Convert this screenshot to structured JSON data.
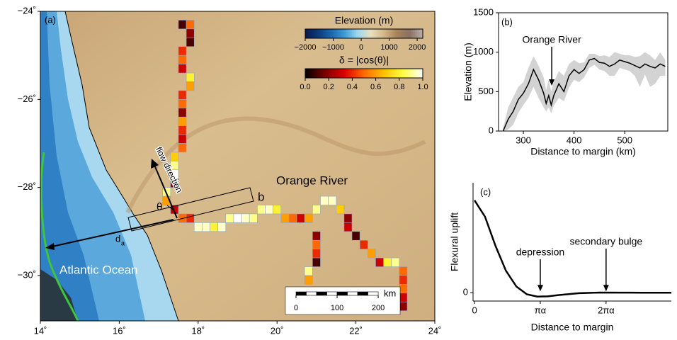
{
  "chart_data": [
    {
      "type": "map",
      "panel_label": "(a)",
      "xlim": [
        14,
        24
      ],
      "xticks": [
        {
          "value": 14,
          "label": "14˚"
        },
        {
          "value": 16,
          "label": "16˚"
        },
        {
          "value": 18,
          "label": "18˚"
        },
        {
          "value": 20,
          "label": "20˚"
        },
        {
          "value": 22,
          "label": "22˚"
        },
        {
          "value": 24,
          "label": "24˚"
        }
      ],
      "ylim": [
        -31.03,
        -24
      ],
      "yticks": [
        {
          "value": -24,
          "label": "−24˚"
        },
        {
          "value": -26,
          "label": "−26˚"
        },
        {
          "value": -28,
          "label": "−28˚"
        },
        {
          "value": -30,
          "label": "−30˚"
        }
      ],
      "annotations": {
        "river": "Orange River",
        "ocean": "Atlantic Ocean",
        "flow": "flow direction",
        "angle": "θ",
        "box": "b",
        "distance": "d",
        "distance_sub": "a"
      },
      "elevation_colorbar": {
        "label": "Elevation (m)",
        "lim": [
          -2000,
          2200
        ],
        "ticks": [
          {
            "value": -2000,
            "label": "−2000"
          },
          {
            "value": -1000,
            "label": "−1000"
          },
          0,
          1000,
          2000
        ],
        "colors": [
          "#0a1a4a",
          "#0d3b7a",
          "#1a66b0",
          "#3d9bd6",
          "#9dd6ee",
          "#e8dfc0",
          "#d4b888",
          "#a8825a",
          "#8a7062",
          "#b8b0ac"
        ]
      },
      "delta_colorbar": {
        "label": "δ = |cos(θ)|",
        "lim": [
          0,
          1
        ],
        "ticks": [
          {
            "value": 0,
            "label": "0.0"
          },
          0.2,
          0.4,
          0.6,
          0.8,
          {
            "value": 1,
            "label": "1.0"
          }
        ],
        "colors": [
          "#000000",
          "#7a0000",
          "#e00000",
          "#ff6a00",
          "#ffc000",
          "#ffff40",
          "#ffffff"
        ]
      },
      "scalebar": {
        "label": "km",
        "ticks": [
          0,
          100,
          200
        ]
      },
      "river_cells": {
        "x": [
          17.6,
          17.8,
          17.8,
          17.8,
          17.6,
          17.6,
          17.6,
          17.8,
          17.8,
          17.6,
          17.6,
          17.6,
          17.6,
          17.6,
          17.6,
          17.6,
          17.4,
          17.4,
          17.4,
          17.4,
          17.2,
          17.2,
          17.4,
          17.6,
          17.8,
          18.0,
          18.2,
          18.4,
          18.6,
          18.8,
          19.0,
          19.2,
          19.4,
          19.6,
          19.8,
          20.0,
          20.2,
          20.4,
          20.6,
          20.8,
          21.0,
          21.2,
          21.4,
          21.6,
          21.8,
          21.8,
          22.0,
          22.2,
          22.4,
          22.6,
          22.8,
          23.0,
          23.2,
          23.2,
          23.2,
          23.2,
          23.2,
          21.0,
          21.0,
          21.0,
          21.0,
          20.8,
          20.8
        ],
        "y": [
          -24.3,
          -24.3,
          -24.5,
          -24.7,
          -24.9,
          -25.1,
          -25.3,
          -25.5,
          -25.7,
          -25.9,
          -26.1,
          -26.3,
          -26.5,
          -26.7,
          -26.9,
          -27.1,
          -27.3,
          -27.5,
          -27.7,
          -27.9,
          -28.1,
          -28.3,
          -28.5,
          -28.7,
          -28.7,
          -28.9,
          -28.9,
          -28.9,
          -28.9,
          -28.7,
          -28.7,
          -28.7,
          -28.7,
          -28.5,
          -28.5,
          -28.5,
          -28.7,
          -28.7,
          -28.7,
          -28.7,
          -28.5,
          -28.3,
          -28.3,
          -28.5,
          -28.7,
          -28.9,
          -29.1,
          -29.3,
          -29.5,
          -29.7,
          -29.7,
          -29.7,
          -29.9,
          -30.1,
          -30.3,
          -30.5,
          -30.7,
          -29.1,
          -29.3,
          -29.5,
          -29.7,
          -29.9,
          -30.1
        ],
        "delta": [
          0.1,
          0.5,
          0.2,
          0.1,
          0.4,
          0.5,
          0.3,
          0.8,
          0.6,
          0.4,
          0.5,
          0.2,
          0.6,
          0.4,
          0.3,
          0.5,
          0.7,
          0.9,
          1.0,
          0.2,
          0.9,
          0.6,
          0.3,
          0.5,
          0.4,
          0.95,
          0.95,
          0.8,
          0.95,
          0.9,
          1.0,
          0.95,
          0.9,
          0.9,
          0.95,
          0.8,
          0.6,
          0.5,
          0.3,
          0.6,
          0.9,
          0.95,
          0.95,
          0.7,
          0.2,
          0.3,
          0.1,
          0.4,
          0.6,
          0.3,
          0.8,
          0.9,
          0.5,
          0.4,
          0.5,
          0.3,
          0.2,
          0.2,
          0.5,
          0.4,
          0.1,
          0.9,
          0.6
        ]
      }
    },
    {
      "type": "line",
      "panel_label": "(b)",
      "xlabel": "Distance to margin (km)",
      "ylabel": "Elevation (m)",
      "xlim": [
        251,
        585
      ],
      "xticks": [
        300,
        400,
        500
      ],
      "ylim": [
        0,
        1500
      ],
      "yticks": [
        0,
        500,
        1000,
        1500
      ],
      "color": "#000000",
      "band_color": "#d3d3d3",
      "x": [
        260,
        270,
        280,
        290,
        300,
        310,
        320,
        330,
        340,
        345,
        350,
        355,
        360,
        370,
        380,
        390,
        400,
        410,
        420,
        430,
        440,
        450,
        460,
        470,
        480,
        490,
        500,
        510,
        520,
        530,
        540,
        550,
        560,
        570,
        580
      ],
      "values": [
        0,
        150,
        250,
        400,
        480,
        600,
        780,
        650,
        480,
        350,
        450,
        330,
        450,
        600,
        500,
        700,
        780,
        730,
        780,
        900,
        920,
        870,
        860,
        820,
        850,
        900,
        880,
        860,
        830,
        800,
        850,
        820,
        800,
        850,
        820
      ],
      "lower": [
        0,
        20,
        80,
        230,
        330,
        420,
        560,
        420,
        300,
        250,
        300,
        220,
        320,
        420,
        380,
        550,
        650,
        620,
        680,
        800,
        840,
        780,
        760,
        700,
        700,
        800,
        780,
        760,
        700,
        560,
        720,
        560,
        600,
        700,
        700
      ],
      "upper": [
        40,
        300,
        430,
        560,
        620,
        800,
        950,
        830,
        680,
        520,
        650,
        500,
        620,
        760,
        700,
        850,
        900,
        860,
        870,
        980,
        980,
        950,
        960,
        940,
        1000,
        980,
        960,
        960,
        940,
        950,
        1000,
        960,
        900,
        1000,
        900
      ],
      "annotation": "Orange River",
      "annotation_x": 356
    },
    {
      "type": "line",
      "panel_label": "(c)",
      "xlabel": "Distance to margin",
      "ylabel": "Flexural uplift",
      "xlim": [
        -0.07,
        9.4
      ],
      "xticks": [
        0,
        {
          "value": 3.1416,
          "label": "πα"
        },
        {
          "value": 6.2832,
          "label": "2πα"
        }
      ],
      "ylim": [
        -0.09,
        1.19
      ],
      "yticks": [
        0
      ],
      "color": "#000000",
      "x": [
        0,
        0.5,
        1,
        1.5,
        2,
        2.5,
        3,
        3.5,
        4,
        5,
        6,
        7,
        8,
        9,
        9.4
      ],
      "values": [
        1,
        0.823,
        0.508,
        0.238,
        0.067,
        -0.017,
        -0.042,
        -0.039,
        -0.026,
        -0.005,
        0.002,
        0.001,
        0,
        0,
        0
      ],
      "annotations": [
        "depression",
        "secondary bulge"
      ]
    }
  ]
}
